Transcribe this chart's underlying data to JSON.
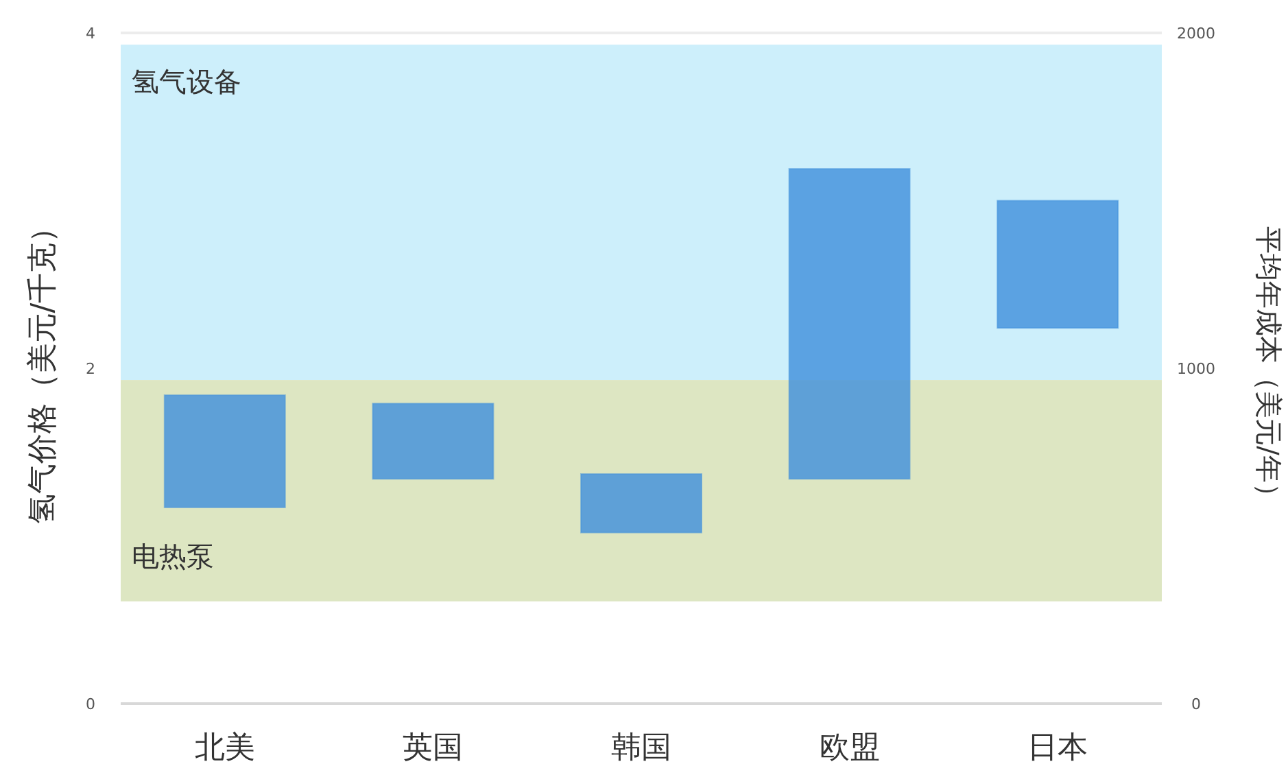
{
  "chart_data": {
    "type": "bar",
    "ylabel": "氢气价格（美元/千克）",
    "y2label": "平均年成本（美元/年）",
    "categories": [
      "北美",
      "英国",
      "韩国",
      "欧盟",
      "日本"
    ],
    "series": [
      {
        "color": "#3f8fdc",
        "values": [
          0.67,
          0.45,
          0.35,
          1.85,
          0.76
        ],
        "base": [
          1.17,
          1.34,
          1.02,
          1.34,
          2.24
        ]
      }
    ],
    "ylim": [
      0,
      4
    ],
    "yticks": [
      0,
      2,
      4
    ],
    "y2lim": [
      0,
      2000
    ],
    "y2ticks": [
      0,
      1000,
      2000
    ],
    "bands": [
      {
        "axis": "y",
        "from": 1.93,
        "to": 3.93,
        "label": "氢气设备",
        "color": "#cdeffb"
      },
      {
        "axis": "y",
        "from": 0.61,
        "to": 1.93,
        "label": "电热泵",
        "color": "#dde6c2"
      }
    ]
  }
}
